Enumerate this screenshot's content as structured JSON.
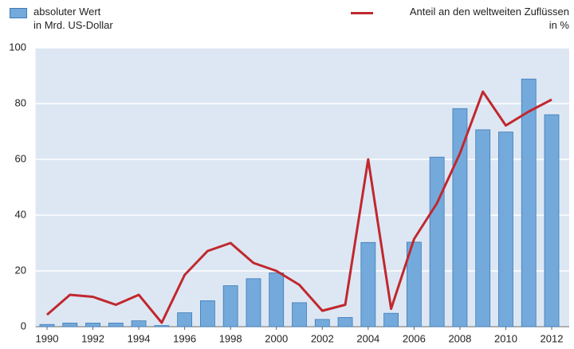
{
  "chart_data": {
    "type": "bar-line",
    "x": [
      1990,
      1991,
      1992,
      1993,
      1994,
      1995,
      1996,
      1997,
      1998,
      1999,
      2000,
      2001,
      2002,
      2003,
      2004,
      2005,
      2006,
      2007,
      2008,
      2009,
      2010,
      2011,
      2012
    ],
    "xlim": [
      1989.5,
      2012.5
    ],
    "xticks": [
      1990,
      1992,
      1994,
      1996,
      1998,
      2000,
      2002,
      2004,
      2006,
      2008,
      2010,
      2012
    ],
    "ylim": [
      0,
      100
    ],
    "yticks": [
      0,
      20,
      40,
      60,
      80,
      100
    ],
    "y2lim": [
      0,
      7
    ],
    "grid": true,
    "series": [
      {
        "name": "absoluter Wert\nin Mrd. US-Dollar",
        "type": "bar",
        "color": "#74aadb",
        "values": [
          0.8,
          1.3,
          1.3,
          1.3,
          2.1,
          0.4,
          5,
          9.3,
          14.7,
          17.2,
          19.3,
          8.6,
          2.6,
          3.3,
          30.2,
          4.8,
          30.3,
          60.8,
          78.2,
          70.6,
          69.8,
          88.8,
          76
        ]
      },
      {
        "name": "Anteil an den weltweiten Zuflüssen\nin %",
        "type": "line",
        "axis": "y2",
        "color": "#c0282e",
        "values": [
          0.3,
          0.8,
          0.75,
          0.55,
          0.8,
          0.1,
          1.3,
          1.9,
          2.1,
          1.6,
          1.4,
          1.05,
          0.4,
          0.55,
          4.2,
          0.45,
          2.2,
          3.1,
          4.35,
          5.9,
          5.05,
          5.4,
          5.7
        ]
      }
    ]
  }
}
